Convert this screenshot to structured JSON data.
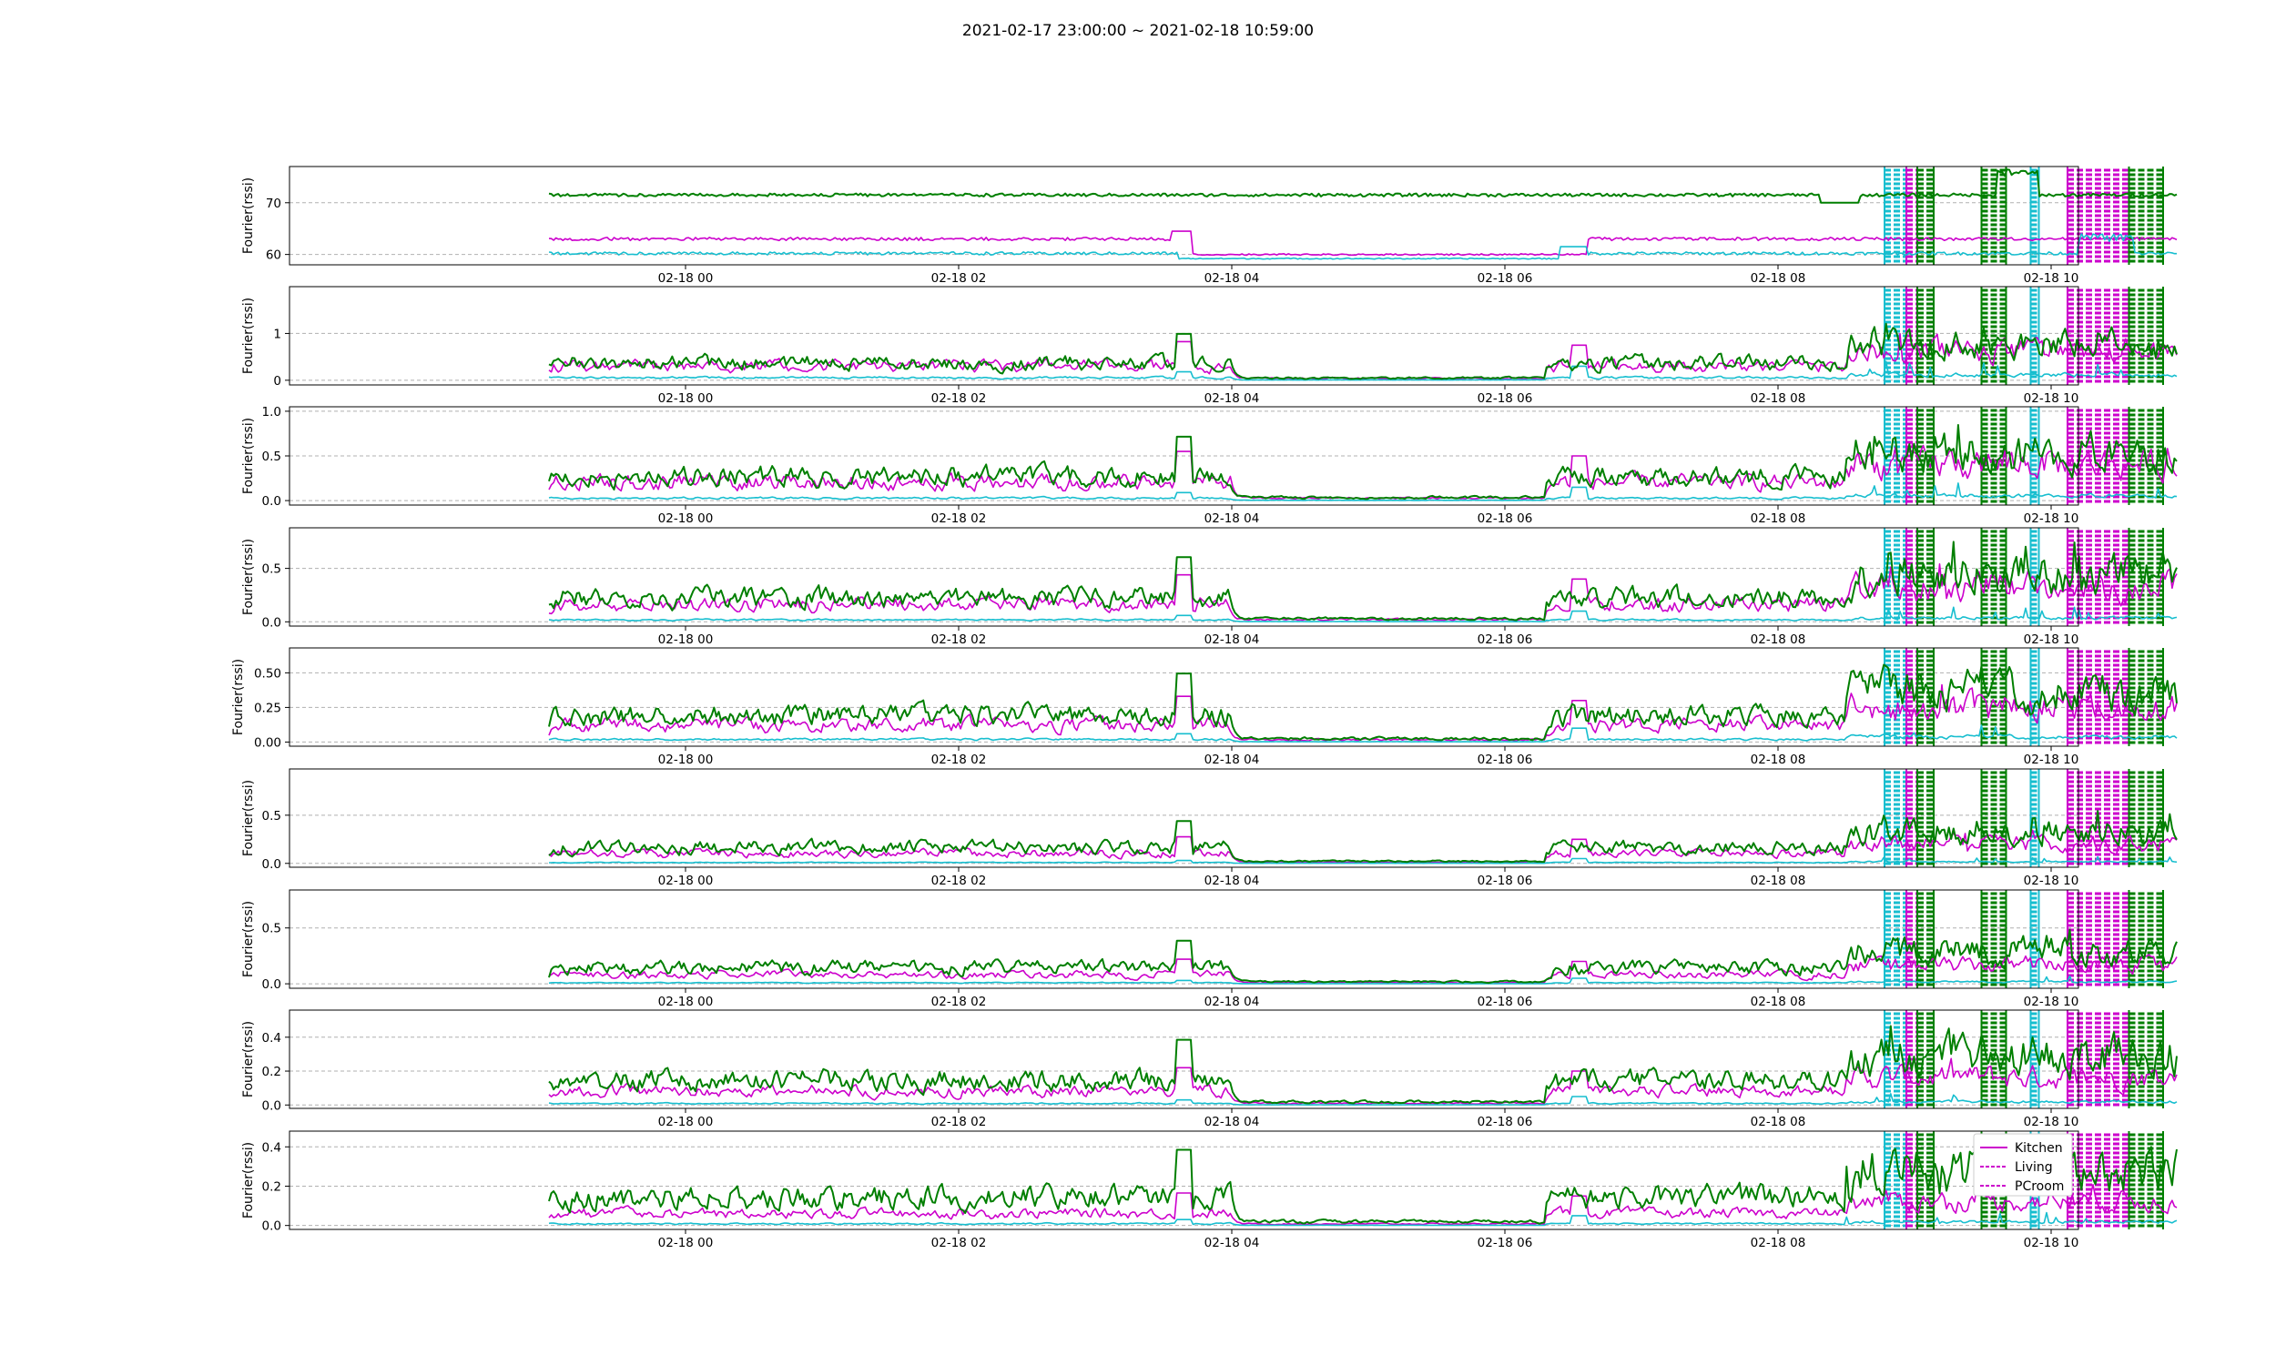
{
  "title": "2021-02-17 23:00:00 ~ 2021-02-18 10:59:00",
  "colors": {
    "Kitchen": "#cc00cc",
    "Living": "#17becf",
    "PCroom": "#007f00",
    "Kitchen_band": "#cc00cc",
    "Living_band": "#17becf",
    "PCroom_band": "#007f00",
    "grid": "#b0b0b0"
  },
  "chart_data": {
    "type": "line",
    "time_range": [
      "2021-02-17 23:00:00",
      "2021-02-18 10:59:00"
    ],
    "x_tick_labels": [
      "02-18 00",
      "02-18 02",
      "02-18 04",
      "02-18 06",
      "02-18 08",
      "02-18 10"
    ],
    "x_tick_hours": [
      0,
      2,
      4,
      6,
      8,
      10
    ],
    "x_range_hours": [
      -2.9,
      10.2
    ],
    "series_names": [
      "Kitchen",
      "Living",
      "PCroom"
    ],
    "legend": {
      "placement": "lower-right of bottom panel",
      "entries": [
        "Kitchen",
        "Living",
        "PCroom"
      ]
    },
    "activity_bands": [
      {
        "color_key": "Living_band",
        "start_h": 8.78,
        "end_h": 8.94
      },
      {
        "color_key": "Kitchen_band",
        "start_h": 8.94,
        "end_h": 9.02
      },
      {
        "color_key": "PCroom_band",
        "start_h": 9.02,
        "end_h": 9.14
      },
      {
        "color_key": "PCroom_band",
        "start_h": 9.49,
        "end_h": 9.67
      },
      {
        "color_key": "Living_band",
        "start_h": 9.85,
        "end_h": 9.91
      },
      {
        "color_key": "Kitchen_band",
        "start_h": 10.12,
        "end_h": 10.57
      },
      {
        "color_key": "PCroom_band",
        "start_h": 10.57,
        "end_h": 10.82
      }
    ],
    "panels": [
      {
        "ylabel": "Fourier(rssi)",
        "ylim": [
          58,
          77
        ],
        "yticks": [
          60,
          70
        ],
        "ytick_labels": [
          "60",
          "70"
        ],
        "grid_y": true,
        "levels": {
          "Kitchen": 63,
          "Living": 60.2,
          "PCroom": 71.5
        }
      },
      {
        "ylabel": "Fourier(rssi)",
        "ylim": [
          -0.1,
          2.0
        ],
        "yticks": [
          0,
          1
        ],
        "ytick_labels": [
          "0",
          "1"
        ],
        "grid_y": true,
        "levels": {
          "Kitchen": 0.15,
          "Living": 0.06,
          "PCroom": 0.18
        }
      },
      {
        "ylabel": "Fourier(rssi)",
        "ylim": [
          -0.05,
          1.05
        ],
        "yticks": [
          0.0,
          0.5,
          1.0
        ],
        "ytick_labels": [
          "0.0",
          "0.5",
          "1.0"
        ],
        "grid_y": true,
        "levels": {
          "Kitchen": 0.1,
          "Living": 0.03,
          "PCroom": 0.13
        }
      },
      {
        "ylabel": "Fourier(rssi)",
        "ylim": [
          -0.04,
          0.88
        ],
        "yticks": [
          0.0,
          0.5
        ],
        "ytick_labels": [
          "0.0",
          "0.5"
        ],
        "grid_y": true,
        "levels": {
          "Kitchen": 0.08,
          "Living": 0.02,
          "PCroom": 0.11
        }
      },
      {
        "ylabel": "Fourier(rssi)",
        "ylim": [
          -0.03,
          0.68
        ],
        "yticks": [
          0.0,
          0.25,
          0.5
        ],
        "ytick_labels": [
          "0.00",
          "0.25",
          "0.50"
        ],
        "grid_y": true,
        "levels": {
          "Kitchen": 0.06,
          "Living": 0.02,
          "PCroom": 0.09
        }
      },
      {
        "ylabel": "Fourier(rssi)",
        "ylim": [
          -0.04,
          0.98
        ],
        "yticks": [
          0.0,
          0.5
        ],
        "ytick_labels": [
          "0.0",
          "0.5"
        ],
        "grid_y": true,
        "levels": {
          "Kitchen": 0.05,
          "Living": 0.01,
          "PCroom": 0.08
        }
      },
      {
        "ylabel": "Fourier(rssi)",
        "ylim": [
          -0.04,
          0.84
        ],
        "yticks": [
          0.0,
          0.5
        ],
        "ytick_labels": [
          "0.0",
          "0.5"
        ],
        "grid_y": true,
        "levels": {
          "Kitchen": 0.04,
          "Living": 0.01,
          "PCroom": 0.07
        }
      },
      {
        "ylabel": "Fourier(rssi)",
        "ylim": [
          -0.02,
          0.56
        ],
        "yticks": [
          0.0,
          0.2,
          0.4
        ],
        "ytick_labels": [
          "0.0",
          "0.2",
          "0.4"
        ],
        "grid_y": true,
        "levels": {
          "Kitchen": 0.04,
          "Living": 0.01,
          "PCroom": 0.07
        }
      },
      {
        "ylabel": "Fourier(rssi)",
        "ylim": [
          -0.02,
          0.48
        ],
        "yticks": [
          0.0,
          0.2,
          0.4
        ],
        "ytick_labels": [
          "0.0",
          "0.2",
          "0.4"
        ],
        "grid_y": true,
        "levels": {
          "Kitchen": 0.03,
          "Living": 0.01,
          "PCroom": 0.07
        }
      }
    ]
  }
}
